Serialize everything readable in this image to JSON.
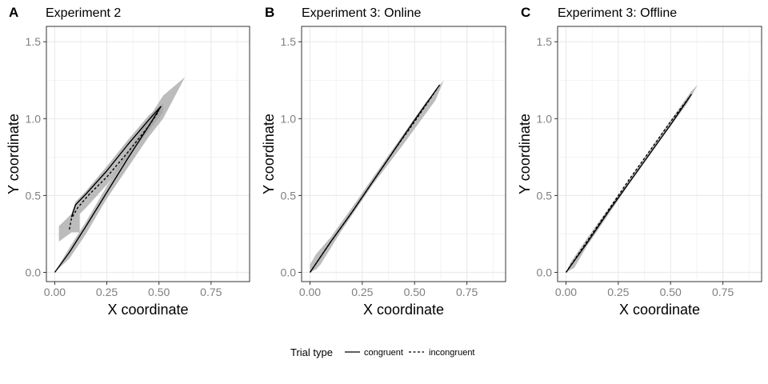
{
  "legend": {
    "title": "Trial type",
    "items": [
      {
        "label": "congruent",
        "dash": "solid"
      },
      {
        "label": "incongruent",
        "dash": "dashed"
      }
    ],
    "position": "bottom"
  },
  "colors": {
    "line": "#000000",
    "ribbon": "#a6a6a6",
    "grid": "#ebebeb",
    "border": "#333333",
    "tick_text": "#7f7f7f"
  },
  "chart_data": [
    {
      "type": "line",
      "tag": "A",
      "title": "Experiment 2",
      "xlabel": "X coordinate",
      "ylabel": "Y coordinate",
      "xlim": [
        -0.04,
        0.935
      ],
      "ylim": [
        -0.06,
        1.6
      ],
      "xticks": [
        "0.00",
        "0.25",
        "0.50",
        "0.75"
      ],
      "yticks": [
        "0.0",
        "0.5",
        "1.0",
        "1.5"
      ],
      "grid": true,
      "series": [
        {
          "name": "congruent",
          "dash": "solid",
          "x": [
            0.0,
            0.07,
            0.15,
            0.25,
            0.35,
            0.45,
            0.51
          ],
          "y": [
            0.0,
            0.13,
            0.3,
            0.52,
            0.74,
            0.95,
            1.08
          ]
        },
        {
          "name": "congruent",
          "dash": "solid",
          "x": [
            0.08,
            0.1,
            0.15,
            0.25,
            0.35,
            0.45,
            0.51
          ],
          "y": [
            0.36,
            0.44,
            0.51,
            0.66,
            0.83,
            0.99,
            1.08
          ]
        },
        {
          "name": "incongruent",
          "dash": "dashed",
          "x": [
            0.07,
            0.08,
            0.11,
            0.16,
            0.25,
            0.35,
            0.45,
            0.5
          ],
          "y": [
            0.28,
            0.35,
            0.42,
            0.5,
            0.62,
            0.78,
            0.95,
            1.05
          ]
        }
      ],
      "ribbons": [
        {
          "x": [
            0.0,
            0.07,
            0.15,
            0.25,
            0.35,
            0.45,
            0.52,
            0.625,
            0.52,
            0.45,
            0.35,
            0.25,
            0.15,
            0.07,
            0.0
          ],
          "y": [
            0.0,
            0.16,
            0.33,
            0.56,
            0.79,
            1.0,
            1.15,
            1.27,
            1.0,
            0.88,
            0.68,
            0.48,
            0.25,
            0.09,
            0.0
          ]
        },
        {
          "x": [
            0.02,
            0.08,
            0.1,
            0.15,
            0.25,
            0.35,
            0.45,
            0.52,
            0.52,
            0.45,
            0.35,
            0.25,
            0.15,
            0.12,
            0.12,
            0.08,
            0.02
          ],
          "y": [
            0.3,
            0.38,
            0.46,
            0.53,
            0.69,
            0.86,
            1.02,
            1.1,
            1.04,
            0.92,
            0.75,
            0.57,
            0.42,
            0.38,
            0.26,
            0.26,
            0.2
          ]
        }
      ]
    },
    {
      "type": "line",
      "tag": "B",
      "title": "Experiment 3: Online",
      "xlabel": "X coordinate",
      "ylabel": "Y coordinate",
      "xlim": [
        -0.04,
        0.935
      ],
      "ylim": [
        -0.06,
        1.6
      ],
      "xticks": [
        "0.00",
        "0.25",
        "0.50",
        "0.75"
      ],
      "yticks": [
        "0.0",
        "0.5",
        "1.0",
        "1.5"
      ],
      "grid": true,
      "series": [
        {
          "name": "congruent",
          "dash": "solid",
          "x": [
            0.0,
            0.1,
            0.2,
            0.3,
            0.4,
            0.5,
            0.62
          ],
          "y": [
            0.0,
            0.2,
            0.39,
            0.59,
            0.79,
            0.99,
            1.22
          ]
        },
        {
          "name": "incongruent",
          "dash": "dashed",
          "x": [
            0.0,
            0.1,
            0.2,
            0.3,
            0.4,
            0.5,
            0.61
          ],
          "y": [
            0.0,
            0.2,
            0.39,
            0.59,
            0.79,
            0.98,
            1.2
          ]
        }
      ],
      "ribbons": [
        {
          "x": [
            0.0,
            0.03,
            0.1,
            0.2,
            0.4,
            0.55,
            0.64,
            0.6,
            0.45,
            0.3,
            0.15,
            0.05,
            0.03,
            0.0
          ],
          "y": [
            0.05,
            0.12,
            0.23,
            0.42,
            0.81,
            1.1,
            1.25,
            1.12,
            0.84,
            0.57,
            0.27,
            0.05,
            0.02,
            0.0
          ]
        }
      ]
    },
    {
      "type": "line",
      "tag": "C",
      "title": "Experiment 3: Offline",
      "xlabel": "X coordinate",
      "ylabel": "Y coordinate",
      "xlim": [
        -0.04,
        0.935
      ],
      "ylim": [
        -0.06,
        1.6
      ],
      "xticks": [
        "0.00",
        "0.25",
        "0.50",
        "0.75"
      ],
      "yticks": [
        "0.0",
        "0.5",
        "1.0",
        "1.5"
      ],
      "grid": true,
      "series": [
        {
          "name": "congruent",
          "dash": "solid",
          "x": [
            0.0,
            0.1,
            0.2,
            0.3,
            0.4,
            0.5,
            0.6
          ],
          "y": [
            0.0,
            0.19,
            0.39,
            0.58,
            0.77,
            0.96,
            1.16
          ]
        },
        {
          "name": "incongruent",
          "dash": "dashed",
          "x": [
            0.0,
            0.1,
            0.2,
            0.3,
            0.4,
            0.5,
            0.59
          ],
          "y": [
            0.0,
            0.2,
            0.4,
            0.6,
            0.79,
            0.98,
            1.14
          ]
        }
      ],
      "ribbons": [
        {
          "x": [
            0.0,
            0.02,
            0.1,
            0.3,
            0.5,
            0.6,
            0.63,
            0.58,
            0.45,
            0.3,
            0.1,
            0.04,
            0.0
          ],
          "y": [
            0.0,
            0.06,
            0.22,
            0.6,
            0.99,
            1.18,
            1.22,
            1.1,
            0.86,
            0.57,
            0.17,
            0.03,
            0.0
          ]
        }
      ]
    }
  ]
}
